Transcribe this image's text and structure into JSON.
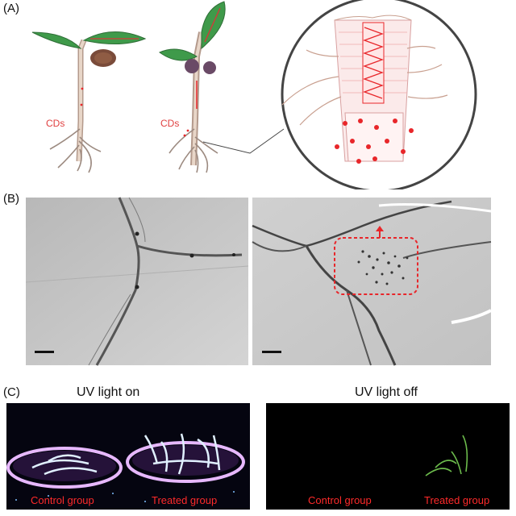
{
  "panels": {
    "a": {
      "label": "(A)",
      "cds_left": "CDs",
      "cds_right": "CDs"
    },
    "b": {
      "label": "(B)"
    },
    "c": {
      "label": "(C)",
      "uv_on": {
        "title": "UV light on",
        "control": "Control group",
        "treated": "Treated group"
      },
      "uv_off": {
        "title": "UV light off",
        "control": "Control group",
        "treated": "Treated group"
      }
    }
  },
  "colors": {
    "accent_red": "#e8262a",
    "leaf_green": "#3f9a4a",
    "uv_background": "#000000",
    "tem_gray": "#c9c9c9"
  }
}
